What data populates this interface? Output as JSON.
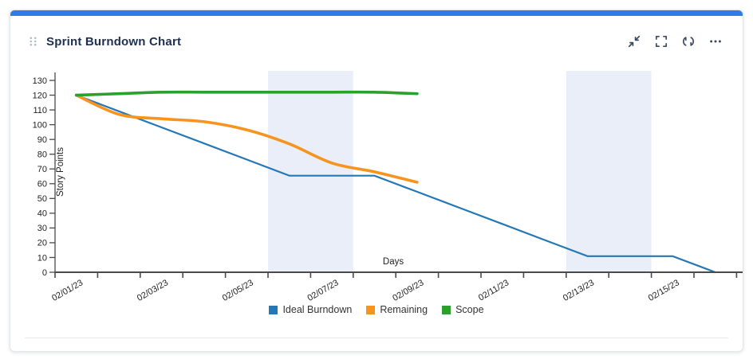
{
  "widget": {
    "title": "Sprint Burndown Chart",
    "colors": {
      "accent_bar": "#2e7ce4",
      "title": "#1e2f54",
      "icon": "#3a4b61",
      "drag_handle": "#b3bdca"
    },
    "toolbar": {
      "buttons": [
        {
          "name": "collapse",
          "icon": "compress-arrows-icon"
        },
        {
          "name": "fullscreen",
          "icon": "fullscreen-brackets-icon"
        },
        {
          "name": "refresh",
          "icon": "refresh-icon"
        },
        {
          "name": "more",
          "icon": "ellipsis-icon"
        }
      ]
    }
  },
  "chart_data": {
    "type": "line",
    "xlabel": "Days",
    "ylabel": "Story Points",
    "x_days": [
      "02/01/23",
      "02/02/23",
      "02/03/23",
      "02/04/23",
      "02/05/23",
      "02/06/23",
      "02/07/23",
      "02/08/23",
      "02/09/23",
      "02/10/23",
      "02/11/23",
      "02/12/23",
      "02/13/23",
      "02/14/23",
      "02/15/23",
      "02/16/23"
    ],
    "x_tick_labels": [
      "02/01/23",
      "02/03/23",
      "02/05/23",
      "02/07/23",
      "02/09/23",
      "02/11/23",
      "02/13/23",
      "02/15/23"
    ],
    "yticks": [
      0,
      10,
      20,
      30,
      40,
      50,
      60,
      70,
      80,
      90,
      100,
      110,
      120,
      130
    ],
    "ylim": [
      0,
      130
    ],
    "grid": false,
    "legend_position": "bottom",
    "series": [
      {
        "name": "Ideal Burndown",
        "color": "#2478b5",
        "style": "straight",
        "width": 2.2,
        "values": [
          120,
          109.09,
          98.18,
          87.27,
          76.36,
          65.45,
          65.45,
          65.45,
          54.55,
          43.64,
          32.73,
          21.82,
          10.91,
          10.91,
          10.91,
          0
        ]
      },
      {
        "name": "Remaining",
        "color": "#f7941e",
        "style": "smooth",
        "width": 3.6,
        "values": [
          120,
          107,
          104,
          102,
          96.5,
          87,
          74,
          68,
          61
        ]
      },
      {
        "name": "Scope",
        "color": "#2ca02c",
        "style": "smooth",
        "width": 3.6,
        "values": [
          120,
          121,
          122,
          122,
          122,
          122,
          122,
          122,
          121
        ]
      }
    ],
    "non_working_day_bands": {
      "color": "#e9eef8",
      "ranges": [
        [
          "02/06/23",
          "02/07/23"
        ],
        [
          "02/13/23",
          "02/14/23"
        ]
      ]
    },
    "axis_colors": {
      "axis": "#4a4a4a",
      "tick_label": "#222222"
    }
  }
}
